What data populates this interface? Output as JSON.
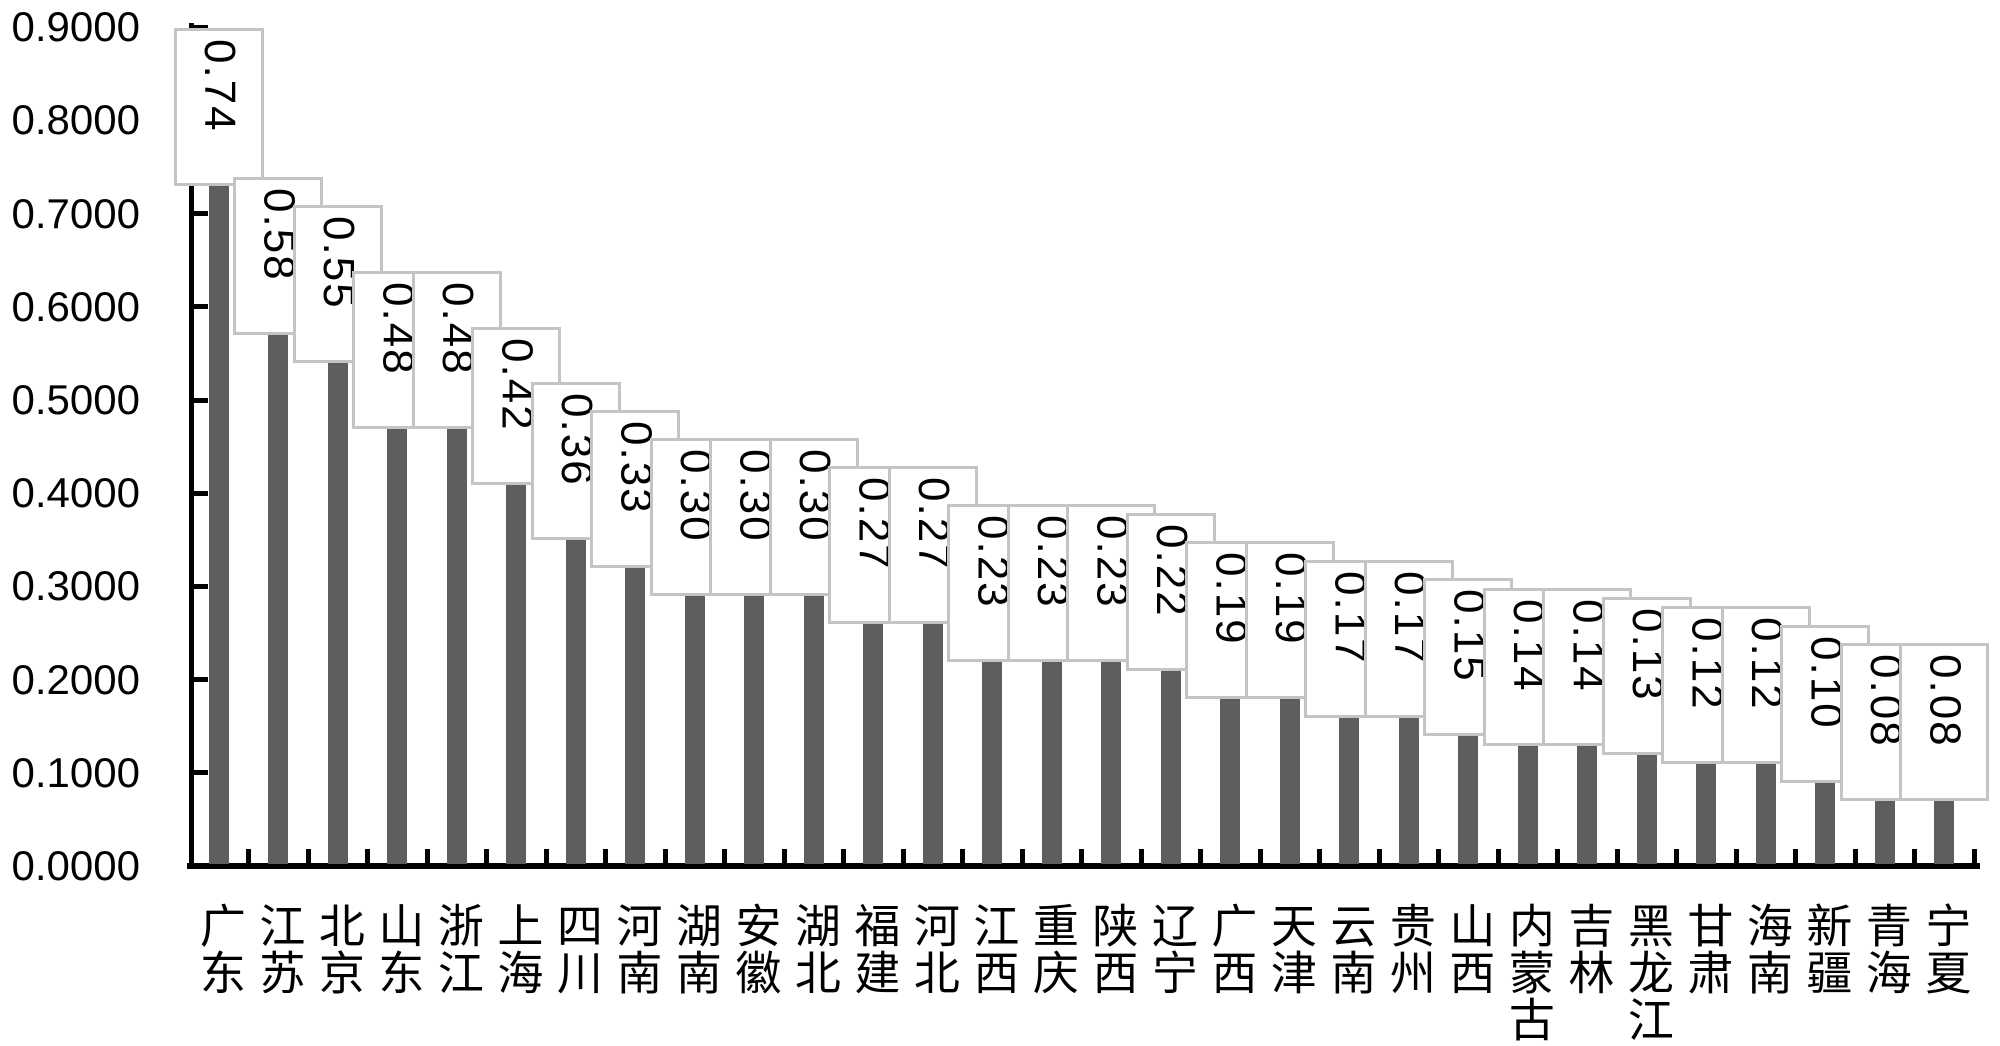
{
  "chart_data": {
    "type": "bar",
    "title": "",
    "xlabel": "",
    "ylabel": "",
    "ylim": [
      0,
      0.9
    ],
    "grid": false,
    "legend": null,
    "categories": [
      "广东",
      "江苏",
      "北京",
      "山东",
      "浙江",
      "上海",
      "四川",
      "河南",
      "湖南",
      "安徽",
      "湖北",
      "福建",
      "河北",
      "江西",
      "重庆",
      "陕西",
      "辽宁",
      "广西",
      "天津",
      "云南",
      "贵州",
      "山西",
      "内蒙古",
      "吉林",
      "黑龙江",
      "甘肃",
      "海南",
      "新疆",
      "青海",
      "宁夏"
    ],
    "values": [
      0.74,
      0.58,
      0.55,
      0.48,
      0.48,
      0.42,
      0.36,
      0.33,
      0.3,
      0.3,
      0.3,
      0.27,
      0.27,
      0.23,
      0.23,
      0.23,
      0.22,
      0.19,
      0.19,
      0.17,
      0.17,
      0.15,
      0.14,
      0.14,
      0.13,
      0.12,
      0.12,
      0.1,
      0.08,
      0.08
    ],
    "bar_labels": [
      "0.74",
      "0.58",
      "0.55",
      "0.48",
      "0.48",
      "0.42",
      "0.36",
      "0.33",
      "0.30",
      "0.30",
      "0.30",
      "0.27",
      "0.27",
      "0.23",
      "0.23",
      "0.23",
      "0.22",
      "0.19",
      "0.19",
      "0.17",
      "0.17",
      "0.15",
      "0.14",
      "0.14",
      "0.13",
      "0.12",
      "0.12",
      "0.10",
      "0.08",
      "0.08"
    ],
    "y_tick_labels": [
      "0.9000",
      "0.8000",
      "0.7000",
      "0.6000",
      "0.5000",
      "0.4000",
      "0.3000",
      "0.2000",
      "0.1000",
      "0.0000"
    ],
    "y_tick_values": [
      0.9,
      0.8,
      0.7,
      0.6,
      0.5,
      0.4,
      0.3,
      0.2,
      0.1,
      0.0
    ],
    "colors": {
      "bar_fill": "#5e5e5e",
      "label_box_fill": "#ffffff",
      "label_box_border": "#c4c4c4",
      "axis": "#000000",
      "text": "#000000"
    }
  }
}
